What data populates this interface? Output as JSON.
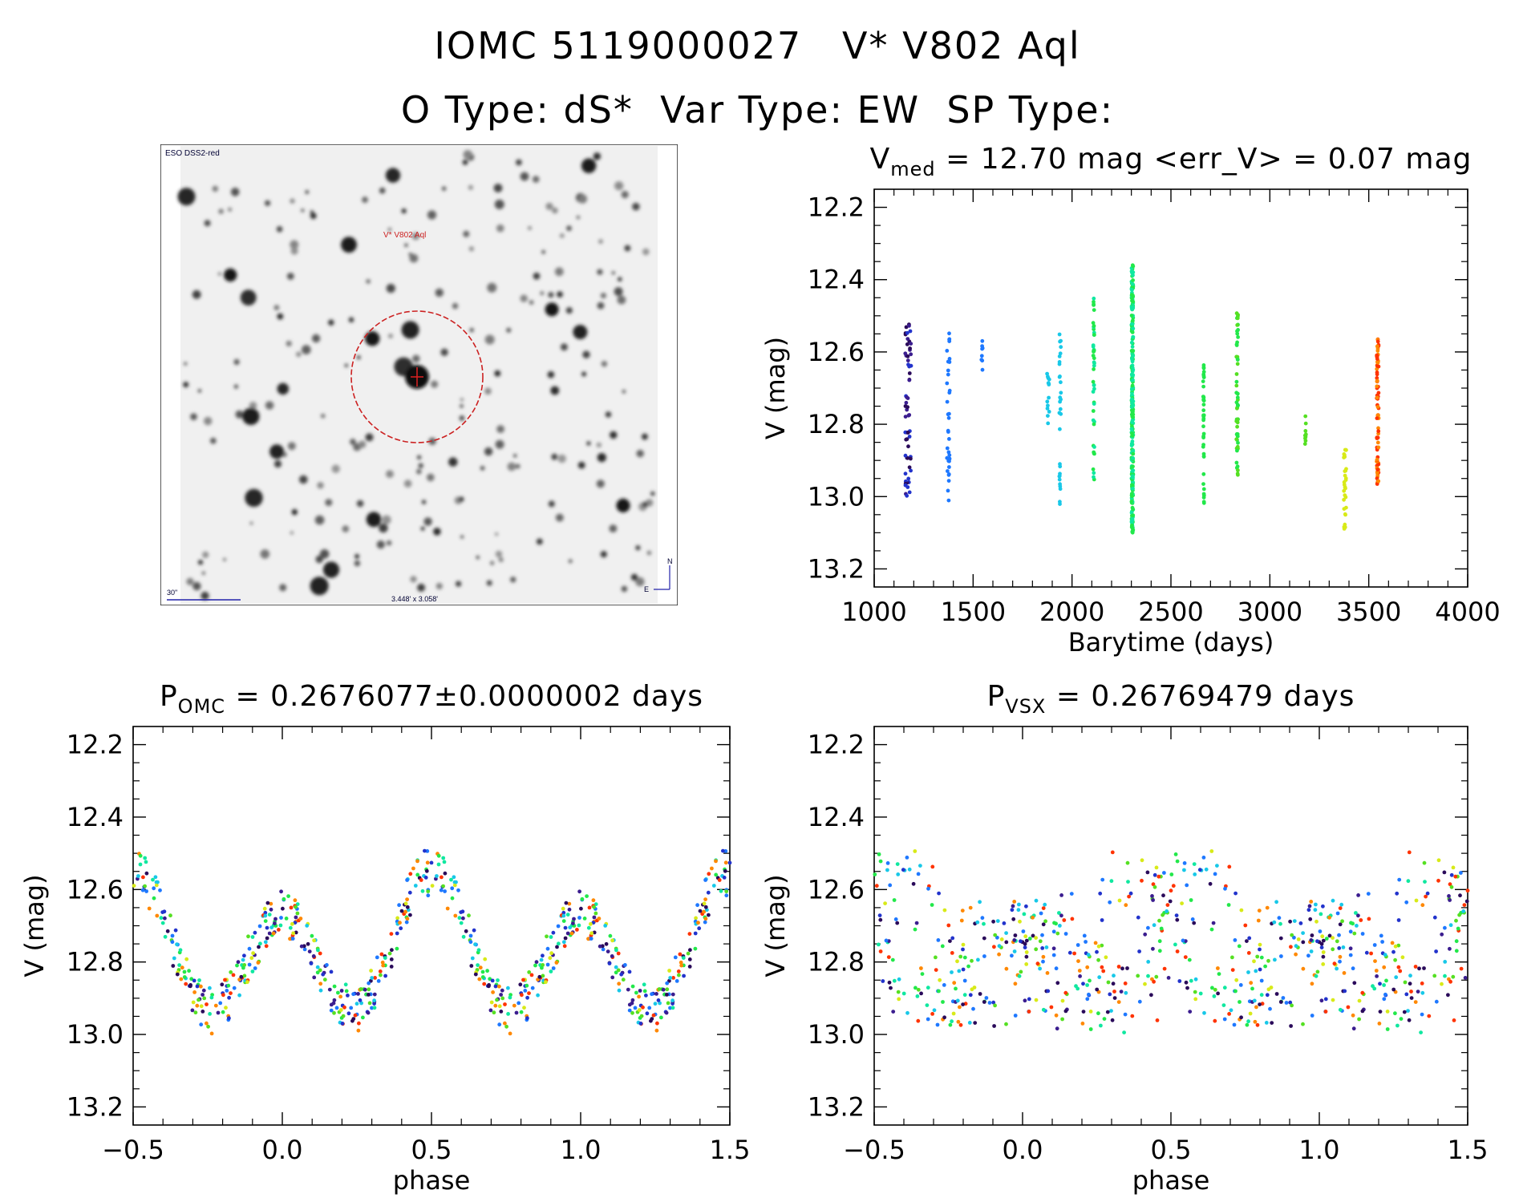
{
  "header": {
    "title_line1": "IOMC 5119000027   V* V802 Aql",
    "title_line2": "O Type: dS*  Var Type: EW  SP Type:"
  },
  "stamp": {
    "survey_label": "ESO DSS2-red",
    "object_label": "V* V802 Aql",
    "scale_label": "30\"",
    "fov_label": "3.448' x 3.058'",
    "compass_n": "N",
    "compass_e": "E"
  },
  "colors": {
    "palette": [
      "#2a0a5a",
      "#3b1d8f",
      "#2233cc",
      "#1e78ff",
      "#18c8e8",
      "#10e8a0",
      "#22e84a",
      "#55e022",
      "#d8ea18",
      "#ff8800",
      "#ff3300"
    ],
    "circle": "#cc2222"
  },
  "chart_data": [
    {
      "type": "scatter",
      "id": "lightcurve",
      "title_main": "V",
      "title_sub": "med",
      "title_rest": " = 12.70 mag <err_V> = 0.07 mag",
      "xlabel": "Barytime (days)",
      "ylabel": "V (mag)",
      "xlim": [
        1000,
        4000
      ],
      "ylim": [
        13.25,
        12.15
      ],
      "xticks": [
        1000,
        1500,
        2000,
        2500,
        3000,
        3500,
        4000
      ],
      "xtick_labels": [
        "1000",
        "1500",
        "2000",
        "2500",
        "3000",
        "3500",
        "4000"
      ],
      "yticks": [
        12.2,
        12.4,
        12.6,
        12.8,
        13.0,
        13.2
      ],
      "ytick_labels": [
        "12.2",
        "12.4",
        "12.6",
        "12.8",
        "13.0",
        "13.2"
      ],
      "clusters": [
        {
          "x": 1172,
          "spread": 30,
          "ymin": 12.52,
          "ymax": 13.0,
          "n": 60,
          "colors": [
            0,
            1,
            2
          ]
        },
        {
          "x": 1375,
          "spread": 14,
          "ymin": 12.53,
          "ymax": 13.03,
          "n": 35,
          "colors": [
            3
          ]
        },
        {
          "x": 1545,
          "spread": 6,
          "ymin": 12.56,
          "ymax": 12.65,
          "n": 8,
          "colors": [
            3
          ]
        },
        {
          "x": 1880,
          "spread": 12,
          "ymin": 12.63,
          "ymax": 12.8,
          "n": 14,
          "colors": [
            4
          ]
        },
        {
          "x": 1940,
          "spread": 8,
          "ymin": 12.55,
          "ymax": 13.03,
          "n": 30,
          "colors": [
            4
          ]
        },
        {
          "x": 2110,
          "spread": 6,
          "ymin": 12.45,
          "ymax": 12.97,
          "n": 45,
          "colors": [
            5,
            6
          ]
        },
        {
          "x": 2305,
          "spread": 8,
          "ymin": 12.36,
          "ymax": 13.1,
          "n": 260,
          "colors": [
            6,
            5
          ]
        },
        {
          "x": 2665,
          "spread": 5,
          "ymin": 12.63,
          "ymax": 13.03,
          "n": 40,
          "colors": [
            6
          ]
        },
        {
          "x": 2835,
          "spread": 8,
          "ymin": 12.49,
          "ymax": 12.94,
          "n": 55,
          "colors": [
            7,
            6
          ]
        },
        {
          "x": 3180,
          "spread": 5,
          "ymin": 12.75,
          "ymax": 12.89,
          "n": 10,
          "colors": [
            7
          ]
        },
        {
          "x": 3380,
          "spread": 12,
          "ymin": 12.87,
          "ymax": 13.09,
          "n": 30,
          "colors": [
            8
          ]
        },
        {
          "x": 3545,
          "spread": 10,
          "ymin": 12.56,
          "ymax": 12.97,
          "n": 80,
          "colors": [
            9,
            10
          ]
        }
      ]
    },
    {
      "type": "scatter",
      "id": "phase_omc",
      "title_main": "P",
      "title_sub": "OMC",
      "title_rest": " = 0.2676077±0.0000002 days",
      "xlabel": "phase",
      "ylabel": "V (mag)",
      "period_days": 0.2676077,
      "model": {
        "mean": 12.77,
        "amp1": 0.16,
        "amp2": 0.06
      },
      "xlim": [
        -0.5,
        1.5
      ],
      "ylim": [
        13.25,
        12.15
      ],
      "xticks": [
        -0.5,
        0.0,
        0.5,
        1.0,
        1.5
      ],
      "xtick_labels": [
        "−0.5",
        "0.0",
        "0.5",
        "1.0",
        "1.5"
      ],
      "yticks": [
        12.2,
        12.4,
        12.6,
        12.8,
        13.0,
        13.2
      ],
      "ytick_labels": [
        "12.2",
        "12.4",
        "12.6",
        "12.8",
        "13.0",
        "13.2"
      ]
    },
    {
      "type": "scatter",
      "id": "phase_vsx",
      "title_main": "P",
      "title_sub": "VSX",
      "title_rest": " = 0.26769479 days",
      "xlabel": "phase",
      "ylabel": "V (mag)",
      "period_days": 0.26769479,
      "model": {
        "mean": 12.77,
        "amp1": 0.16,
        "amp2": 0.06
      },
      "xlim": [
        -0.5,
        1.5
      ],
      "ylim": [
        13.25,
        12.15
      ],
      "xticks": [
        -0.5,
        0.0,
        0.5,
        1.0,
        1.5
      ],
      "xtick_labels": [
        "−0.5",
        "0.0",
        "0.5",
        "1.0",
        "1.5"
      ],
      "yticks": [
        12.2,
        12.4,
        12.6,
        12.8,
        13.0,
        13.2
      ],
      "ytick_labels": [
        "12.2",
        "12.4",
        "12.6",
        "12.8",
        "13.0",
        "13.2"
      ]
    }
  ]
}
